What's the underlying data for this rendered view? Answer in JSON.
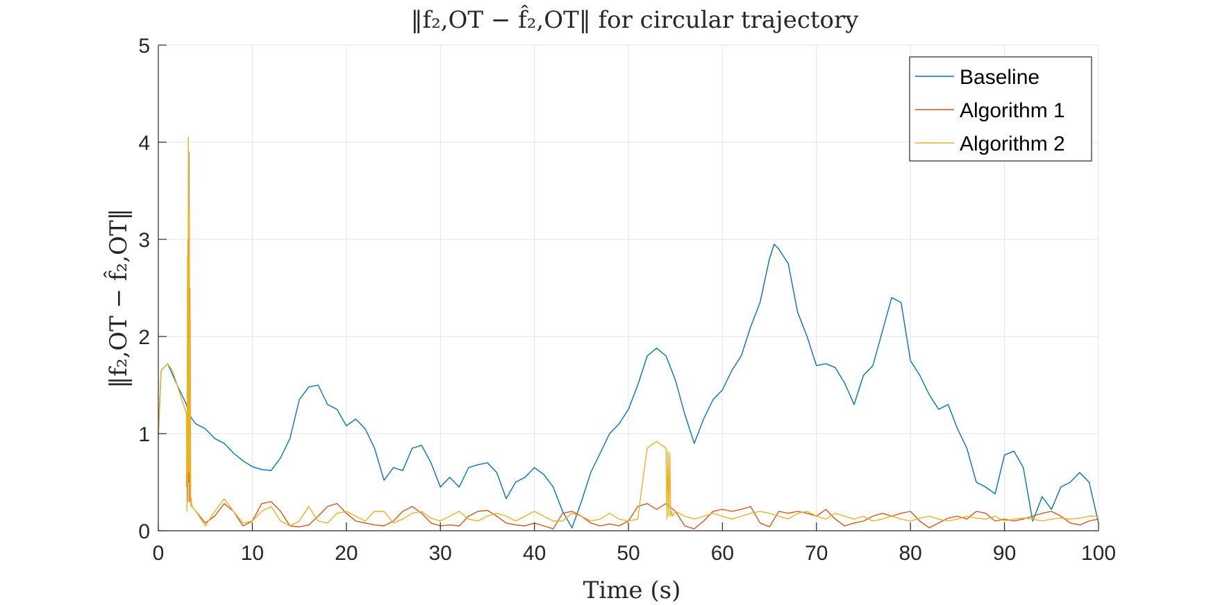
{
  "chart_data": {
    "type": "line",
    "title": "‖f₂,OT − f̂₂,OT‖ for circular trajectory",
    "xlabel": "Time (s)",
    "ylabel": "‖f₂,OT − f̂₂,OT‖",
    "xlim": [
      0,
      100
    ],
    "ylim": [
      0,
      5
    ],
    "xticks": [
      0,
      10,
      20,
      30,
      40,
      50,
      60,
      70,
      80,
      90,
      100
    ],
    "yticks": [
      0,
      1,
      2,
      3,
      4,
      5
    ],
    "grid": true,
    "legend_position": "top-right",
    "series": [
      {
        "name": "Baseline",
        "color": "#0072bd",
        "x": [
          0,
          0.3,
          1,
          2,
          3,
          3.1,
          3.3,
          3.6,
          4,
          5,
          6,
          7,
          8,
          9,
          10,
          11,
          12,
          13,
          14,
          15,
          16,
          17,
          18,
          19,
          20,
          21,
          22,
          23,
          24,
          25,
          26,
          27,
          28,
          29,
          30,
          31,
          32,
          33,
          34,
          35,
          36,
          37,
          38,
          39,
          40,
          41,
          42,
          43,
          44,
          45,
          46,
          47,
          48,
          49,
          50,
          51,
          52,
          53,
          54,
          55,
          56,
          57,
          58,
          59,
          60,
          61,
          62,
          63,
          64,
          65,
          65.5,
          66,
          67,
          68,
          69,
          70,
          71,
          72,
          73,
          74,
          75,
          76,
          77,
          78,
          79,
          80,
          81,
          82,
          83,
          84,
          85,
          86,
          87,
          88,
          89,
          90,
          91,
          92,
          93,
          94,
          95,
          96,
          97,
          98,
          99,
          100
        ],
        "y": [
          1.0,
          1.65,
          1.72,
          1.5,
          1.3,
          1.25,
          1.2,
          1.15,
          1.1,
          1.05,
          0.95,
          0.9,
          0.8,
          0.72,
          0.66,
          0.63,
          0.62,
          0.75,
          0.95,
          1.35,
          1.48,
          1.5,
          1.3,
          1.25,
          1.08,
          1.15,
          1.05,
          0.85,
          0.52,
          0.65,
          0.62,
          0.85,
          0.88,
          0.7,
          0.45,
          0.55,
          0.45,
          0.65,
          0.68,
          0.7,
          0.6,
          0.33,
          0.5,
          0.55,
          0.65,
          0.58,
          0.45,
          0.2,
          0.03,
          0.3,
          0.6,
          0.8,
          1.0,
          1.1,
          1.25,
          1.5,
          1.8,
          1.88,
          1.8,
          1.55,
          1.2,
          0.9,
          1.15,
          1.35,
          1.45,
          1.65,
          1.8,
          2.1,
          2.35,
          2.8,
          2.95,
          2.9,
          2.75,
          2.25,
          2.0,
          1.7,
          1.72,
          1.68,
          1.52,
          1.3,
          1.6,
          1.7,
          2.05,
          2.4,
          2.35,
          1.75,
          1.6,
          1.4,
          1.25,
          1.3,
          1.05,
          0.85,
          0.5,
          0.45,
          0.38,
          0.78,
          0.82,
          0.65,
          0.1,
          0.35,
          0.22,
          0.45,
          0.5,
          0.6,
          0.5,
          0.08
        ]
      },
      {
        "name": "Algorithm 1",
        "color": "#d95319",
        "x": [
          3,
          3.05,
          3.1,
          3.15,
          3.2,
          3.25,
          3.3,
          3.35,
          3.4,
          3.5,
          3.6,
          4,
          5,
          6,
          7,
          8,
          9,
          10,
          11,
          12,
          13,
          14,
          15,
          16,
          17,
          18,
          19,
          20,
          21,
          22,
          23,
          24,
          25,
          26,
          27,
          28,
          29,
          30,
          31,
          32,
          33,
          34,
          35,
          36,
          37,
          38,
          39,
          40,
          41,
          42,
          43,
          44,
          45,
          46,
          47,
          48,
          49,
          50,
          51,
          52,
          53,
          54,
          55,
          56,
          57,
          58,
          59,
          60,
          61,
          62,
          63,
          64,
          65,
          66,
          67,
          68,
          69,
          70,
          71,
          72,
          73,
          74,
          75,
          76,
          77,
          78,
          79,
          80,
          81,
          82,
          83,
          84,
          85,
          86,
          87,
          88,
          89,
          90,
          91,
          92,
          93,
          94,
          95,
          96,
          97,
          98,
          99,
          100
        ],
        "y": [
          0.45,
          0.9,
          0.3,
          3.0,
          0.5,
          3.9,
          0.3,
          2.5,
          0.4,
          0.3,
          0.25,
          0.2,
          0.08,
          0.15,
          0.28,
          0.2,
          0.05,
          0.1,
          0.28,
          0.3,
          0.2,
          0.05,
          0.04,
          0.06,
          0.15,
          0.25,
          0.28,
          0.18,
          0.1,
          0.08,
          0.06,
          0.05,
          0.1,
          0.2,
          0.25,
          0.18,
          0.08,
          0.05,
          0.06,
          0.05,
          0.15,
          0.2,
          0.21,
          0.15,
          0.08,
          0.06,
          0.05,
          0.08,
          0.05,
          0.02,
          0.18,
          0.2,
          0.15,
          0.08,
          0.05,
          0.07,
          0.05,
          0.1,
          0.25,
          0.28,
          0.22,
          0.28,
          0.2,
          0.05,
          0.02,
          0.1,
          0.2,
          0.22,
          0.2,
          0.22,
          0.25,
          0.08,
          0.04,
          0.2,
          0.18,
          0.2,
          0.18,
          0.15,
          0.22,
          0.12,
          0.05,
          0.08,
          0.1,
          0.15,
          0.18,
          0.15,
          0.18,
          0.2,
          0.1,
          0.03,
          0.08,
          0.13,
          0.15,
          0.12,
          0.2,
          0.18,
          0.1,
          0.12,
          0.1,
          0.12,
          0.15,
          0.18,
          0.2,
          0.15,
          0.08,
          0.06,
          0.1,
          0.12
        ]
      },
      {
        "name": "Algorithm 2",
        "color": "#edb120",
        "x": [
          0,
          0.3,
          1,
          1.5,
          2,
          2.5,
          3,
          3.05,
          3.1,
          3.15,
          3.2,
          3.25,
          3.3,
          3.35,
          3.4,
          3.45,
          3.5,
          3.6,
          4,
          5,
          6,
          7,
          8,
          9,
          10,
          11,
          12,
          13,
          14,
          15,
          16,
          17,
          18,
          19,
          20,
          21,
          22,
          23,
          24,
          25,
          26,
          27,
          28,
          29,
          30,
          31,
          32,
          33,
          34,
          35,
          36,
          37,
          38,
          39,
          40,
          41,
          42,
          43,
          44,
          45,
          46,
          47,
          48,
          49,
          50,
          51,
          51.5,
          52,
          53,
          54,
          54.1,
          54.2,
          54.3,
          54.4,
          54.5,
          54.6,
          54.7,
          55,
          56,
          57,
          58,
          59,
          60,
          61,
          62,
          63,
          64,
          65,
          66,
          67,
          68,
          69,
          70,
          71,
          72,
          73,
          74,
          75,
          76,
          77,
          78,
          79,
          80,
          81,
          82,
          83,
          84,
          85,
          86,
          87,
          88,
          89,
          90,
          91,
          92,
          93,
          94,
          95,
          96,
          97,
          98,
          99,
          100
        ],
        "y": [
          0.95,
          1.65,
          1.72,
          1.65,
          1.5,
          1.35,
          1.2,
          0.2,
          2.8,
          0.5,
          4.05,
          0.6,
          3.3,
          0.3,
          2.2,
          0.25,
          0.3,
          0.25,
          0.2,
          0.05,
          0.2,
          0.33,
          0.2,
          0.08,
          0.1,
          0.2,
          0.25,
          0.1,
          0.05,
          0.1,
          0.25,
          0.1,
          0.08,
          0.18,
          0.2,
          0.15,
          0.1,
          0.2,
          0.2,
          0.08,
          0.12,
          0.18,
          0.2,
          0.13,
          0.1,
          0.15,
          0.2,
          0.12,
          0.1,
          0.15,
          0.18,
          0.15,
          0.1,
          0.15,
          0.2,
          0.15,
          0.1,
          0.1,
          0.18,
          0.15,
          0.1,
          0.12,
          0.18,
          0.12,
          0.1,
          0.12,
          0.5,
          0.85,
          0.92,
          0.85,
          0.12,
          0.82,
          0.15,
          0.8,
          0.15,
          0.2,
          0.15,
          0.2,
          0.15,
          0.12,
          0.15,
          0.18,
          0.15,
          0.12,
          0.15,
          0.18,
          0.2,
          0.18,
          0.15,
          0.12,
          0.18,
          0.2,
          0.15,
          0.12,
          0.18,
          0.15,
          0.12,
          0.15,
          0.1,
          0.12,
          0.15,
          0.12,
          0.1,
          0.13,
          0.15,
          0.12,
          0.1,
          0.12,
          0.15,
          0.13,
          0.12,
          0.15,
          0.1,
          0.12,
          0.13,
          0.12,
          0.1,
          0.12,
          0.13,
          0.12,
          0.13,
          0.15,
          0.15
        ]
      }
    ]
  }
}
